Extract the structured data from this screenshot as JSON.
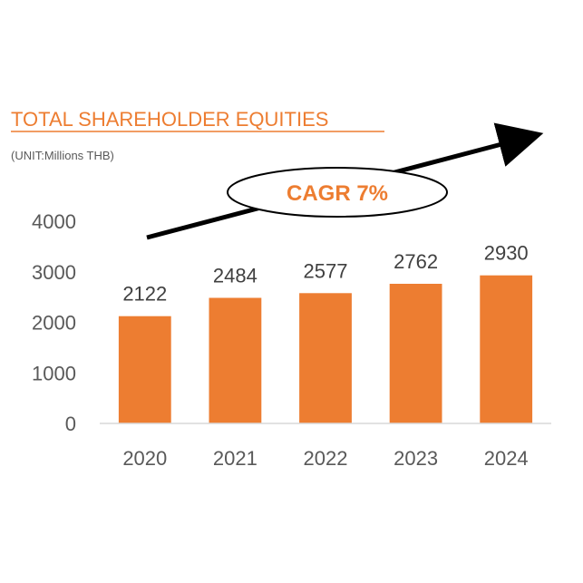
{
  "chart_data": {
    "type": "bar",
    "title": "TOTAL SHAREHOLDER EQUITIES",
    "subtitle": "(UNIT:Millions THB)",
    "categories": [
      "2020",
      "2021",
      "2022",
      "2023",
      "2024"
    ],
    "values": [
      2122,
      2484,
      2577,
      2762,
      2930
    ],
    "data_labels": [
      "2122",
      "2484",
      "2577",
      "2762",
      "2930"
    ],
    "y_ticks": [
      "0",
      "1000",
      "2000",
      "3000",
      "4000"
    ],
    "ylim": [
      0,
      4000
    ],
    "grid": false,
    "annotation": "CAGR 7%",
    "bar_color": "#ED7D31",
    "title_color": "#ED7D31"
  }
}
